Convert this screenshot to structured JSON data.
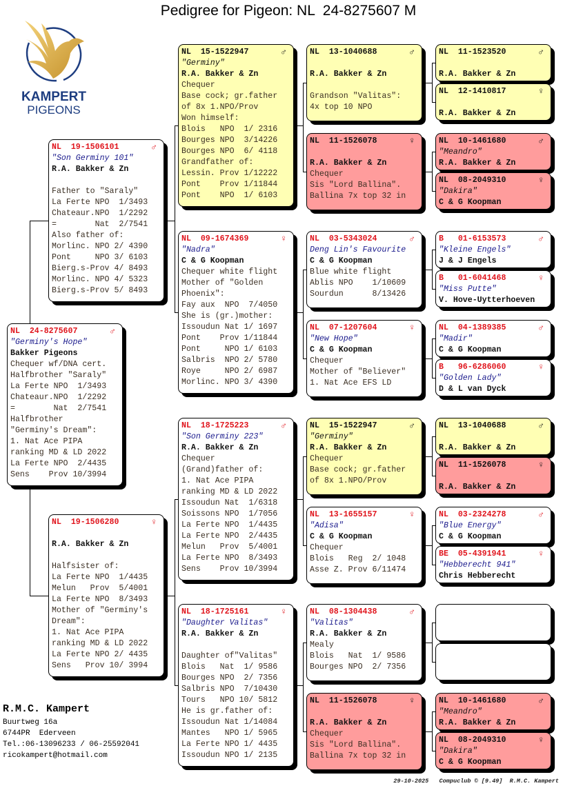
{
  "title": "Pedigree for Pigeon: NL  24-8275607 M",
  "logo": {
    "brand": "KAMPERT",
    "sub": "PIGEONS"
  },
  "colors": {
    "yellow": "#ffffb4",
    "red": "#ff9c9c",
    "white": "#ffffff",
    "ring_red": "#e0141c",
    "name_blue": "#1a1a8c"
  },
  "subject": {
    "color": "white",
    "ring": "NL  24-8275607",
    "sex": "♂",
    "name": "\"Germiny's Hope\"",
    "owner": "Bakker Pigeons",
    "lines": [
      "Chequer wf/DNA cert.",
      "Halfbrother \"Saraly\"",
      "La Ferte NPO  1/3493",
      "Chateaur.NPO  1/2292",
      "=        Nat  2/7541",
      "Halfbrother",
      "\"Germiny's Dream\":",
      "1. Nat Ace PIPA",
      "ranking MD & LD 2022",
      "La Ferte NPO  2/4435",
      "Sens    Prov 10/3994"
    ]
  },
  "sire": {
    "color": "white",
    "ring": "NL  19-1506101",
    "sex": "♂",
    "name": "\"Son Germiny 101\"",
    "owner": "R.A. Bakker & Zn",
    "lines": [
      "",
      "Father to \"Saraly\"",
      "La Ferte NPO  1/3493",
      "Chateaur.NPO  1/2292",
      "=        Nat  2/7541",
      "Also father of:",
      "Morlinc. NPO 2/ 4390",
      "Pont     NPO 3/ 6103",
      "Bierg.s-Prov 4/ 8493",
      "Morlinc. NPO 4/ 5323",
      "Bierg.s-Prov 5/ 8493"
    ]
  },
  "dam": {
    "color": "white",
    "ring": "NL  19-1506280",
    "sex": "♀",
    "name": "",
    "owner": "R.A. Bakker & Zn",
    "lines": [
      "",
      "Halfsister of:",
      "La Ferte NPO  1/4435",
      "Melun   Prov  5/4001",
      "La Ferte NPO  8/3493",
      "Mother of \"Germiny's",
      "Dream\":",
      "1. Nat Ace PIPA",
      "ranking MD & LD 2022",
      "La Ferte NPO 2/ 4435",
      "Sens   Prov 10/ 3994"
    ]
  },
  "gen3": [
    {
      "color": "yellow",
      "ring": "NL  15-1522947",
      "sex": "♂",
      "name": "\"Germiny\"",
      "owner": "R.A. Bakker & Zn",
      "lines": [
        "Chequer",
        "Base cock; gr.father",
        "of 8x 1.NPO/Prov",
        "Won himself:",
        "Blois   NPO  1/ 2316",
        "Bourges NPO  3/14226",
        "Bourges NPO  6/ 4118",
        "Grandfather of:",
        "Lessin. Prov 1/12222",
        "Pont    Prov 1/11844",
        "Pont    NPO  1/ 6103"
      ]
    },
    {
      "color": "white",
      "ring": "NL  09-1674369",
      "sex": "♀",
      "name": "\"Nadra\"",
      "owner": "C & G Koopman",
      "lines": [
        "Chequer white flight",
        "Mother of \"Golden",
        "Phoenix\":",
        "Fay aux  NPO  7/4050",
        "She is (gr.)mother:",
        "Issoudun Nat 1/ 1697",
        "Pont    Prov 1/11844",
        "Pont     NPO 1/ 6103",
        "Salbris  NPO 2/ 5780",
        "Roye     NPO 2/ 6987",
        "Morlinc. NPO 3/ 4390"
      ]
    },
    {
      "color": "white",
      "ring": "NL  18-1725223",
      "sex": "♂",
      "name": "\"Son Germiny 223\"",
      "owner": "R.A. Bakker & Zn",
      "lines": [
        "Chequer",
        "(Grand)father of:",
        "1. Nat Ace PIPA",
        "ranking MD & LD 2022",
        "Issoudun Nat  1/6318",
        "Soissons NPO  1/7056",
        "La Ferte NPO  1/4435",
        "La Ferte NPO  2/4435",
        "Melun   Prov  5/4001",
        "La Ferte NPO  8/3493",
        "Sens    Prov 10/3994"
      ]
    },
    {
      "color": "white",
      "ring": "NL  18-1725161",
      "sex": "♀",
      "name": "\"Daughter Valitas\"",
      "owner": "R.A. Bakker & Zn",
      "lines": [
        "",
        "Daughter of\"Valitas\"",
        "Blois   Nat  1/ 9586",
        "Bourges NPO  2/ 7356",
        "Salbris NPO  7/10430",
        "Tours   NPO 10/ 5812",
        "He is gr.father of:",
        "Issoudun Nat 1/14084",
        "Mantes   NPO 1/ 5965",
        "La Ferte NPO 1/ 4435",
        "Issoudun NPO 1/ 2135"
      ]
    }
  ],
  "gen4": [
    {
      "color": "yellow",
      "ring": "NL  13-1040688",
      "sex": "♂",
      "name": "",
      "owner": "R.A. Bakker & Zn",
      "lines": [
        "",
        "Grandson \"Valitas\":",
        "4x top 10 NPO"
      ]
    },
    {
      "color": "red",
      "ring": "NL  11-1526078",
      "sex": "♀",
      "name": "",
      "owner": "R.A. Bakker & Zn",
      "lines": [
        "Chequer",
        "Sis \"Lord Ballina\".",
        "Ballina 7x top 32 in"
      ]
    },
    {
      "color": "white",
      "ring": "NL  03-5343024",
      "sex": "♂",
      "name": "Deng Lin's Favourite",
      "owner": "C & G Koopman",
      "lines": [
        "Blue white flight",
        "Ablis NPO    1/10609",
        "Sourdun      8/13426"
      ]
    },
    {
      "color": "white",
      "ring": "NL  07-1207604",
      "sex": "♀",
      "name": "\"New Hope\"",
      "owner": "C & G Koopman",
      "lines": [
        "Chequer",
        "Mother of \"Believer\"",
        "1. Nat Ace EFS LD"
      ]
    },
    {
      "color": "yellow",
      "ring": "NL  15-1522947",
      "sex": "♂",
      "name": "\"Germiny\"",
      "owner": "R.A. Bakker & Zn",
      "lines": [
        "Chequer",
        "Base cock; gr.father",
        "of 8x 1.NPO/Prov"
      ]
    },
    {
      "color": "white",
      "ring": "NL  13-1655157",
      "sex": "♀",
      "name": "\"Adisa\"",
      "owner": "C & G Koopman",
      "lines": [
        "Chequer",
        "Blois   Reg  2/ 1048",
        "Asse Z. Prov 6/11474"
      ]
    },
    {
      "color": "white",
      "ring": "NL  08-1304438",
      "sex": "♂",
      "name": "\"Valitas\"",
      "owner": "R.A. Bakker & Zn",
      "lines": [
        "Mealy",
        "Blois   Nat  1/ 9586",
        "Bourges NPO  2/ 7356"
      ]
    },
    {
      "color": "red",
      "ring": "NL  11-1526078",
      "sex": "♀",
      "name": "",
      "owner": "R.A. Bakker & Zn",
      "lines": [
        "Chequer",
        "Sis \"Lord Ballina\".",
        "Ballina 7x top 32 in"
      ]
    }
  ],
  "gen5": [
    {
      "color": "yellow",
      "ring": "NL  11-1523520",
      "sex": "♂",
      "name": "",
      "owner": "R.A. Bakker & Zn"
    },
    {
      "color": "yellow",
      "ring": "NL  12-1410817",
      "sex": "♀",
      "name": "",
      "owner": "R.A. Bakker & Zn"
    },
    {
      "color": "red",
      "ring": "NL  10-1461680",
      "sex": "♂",
      "name": "\"Meandro\"",
      "owner": "R.A. Bakker & Zn"
    },
    {
      "color": "red",
      "ring": "NL  08-2049310",
      "sex": "♀",
      "name": "\"Dakira\"",
      "owner": "C & G Koopman"
    },
    {
      "color": "white",
      "ring": "B   01-6153573",
      "sex": "♂",
      "name": "\"Kleine Engels\"",
      "owner": "J & J Engels"
    },
    {
      "color": "white",
      "ring": "B   01-6041468",
      "sex": "♀",
      "name": "\"Miss Putte\"",
      "owner": "V. Hove-Uytterhoeven"
    },
    {
      "color": "white",
      "ring": "NL  04-1389385",
      "sex": "♂",
      "name": "\"Madir\"",
      "owner": "C & G Koopman"
    },
    {
      "color": "white",
      "ring": "B   96-6286060",
      "sex": "♀",
      "name": "\"Golden Lady\"",
      "owner": "D & L van Dyck"
    },
    {
      "color": "yellow",
      "ring": "NL  13-1040688",
      "sex": "♂",
      "name": "",
      "owner": "R.A. Bakker & Zn"
    },
    {
      "color": "red",
      "ring": "NL  11-1526078",
      "sex": "♀",
      "name": "",
      "owner": "R.A. Bakker & Zn"
    },
    {
      "color": "white",
      "ring": "NL  03-2324278",
      "sex": "♂",
      "name": "\"Blue Energy\"",
      "owner": "C & G Koopman"
    },
    {
      "color": "white",
      "ring": "BE  05-4391941",
      "sex": "♀",
      "name": "\"Hebberecht 941\"",
      "owner": "Chris Hebberecht"
    },
    {
      "color": "white",
      "ring": "",
      "sex": "",
      "name": "",
      "owner": ""
    },
    {
      "color": "white",
      "ring": "",
      "sex": "",
      "name": "",
      "owner": ""
    },
    {
      "color": "red",
      "ring": "NL  10-1461680",
      "sex": "♂",
      "name": "\"Meandro\"",
      "owner": "R.A. Bakker & Zn"
    },
    {
      "color": "red",
      "ring": "NL  08-2049310",
      "sex": "♀",
      "name": "\"Dakira\"",
      "owner": "C & G Koopman"
    }
  ],
  "contact": {
    "name": "R.M.C. Kampert",
    "lines": [
      "Buurtweg 16a",
      "6744PR  Ederveen",
      "Tel.:06-13096233 / 06-25592041",
      "ricokampert@hotmail.com"
    ]
  },
  "footer": "29-10-2025   Compuclub © [9.49]  R.M.C. Kampert"
}
